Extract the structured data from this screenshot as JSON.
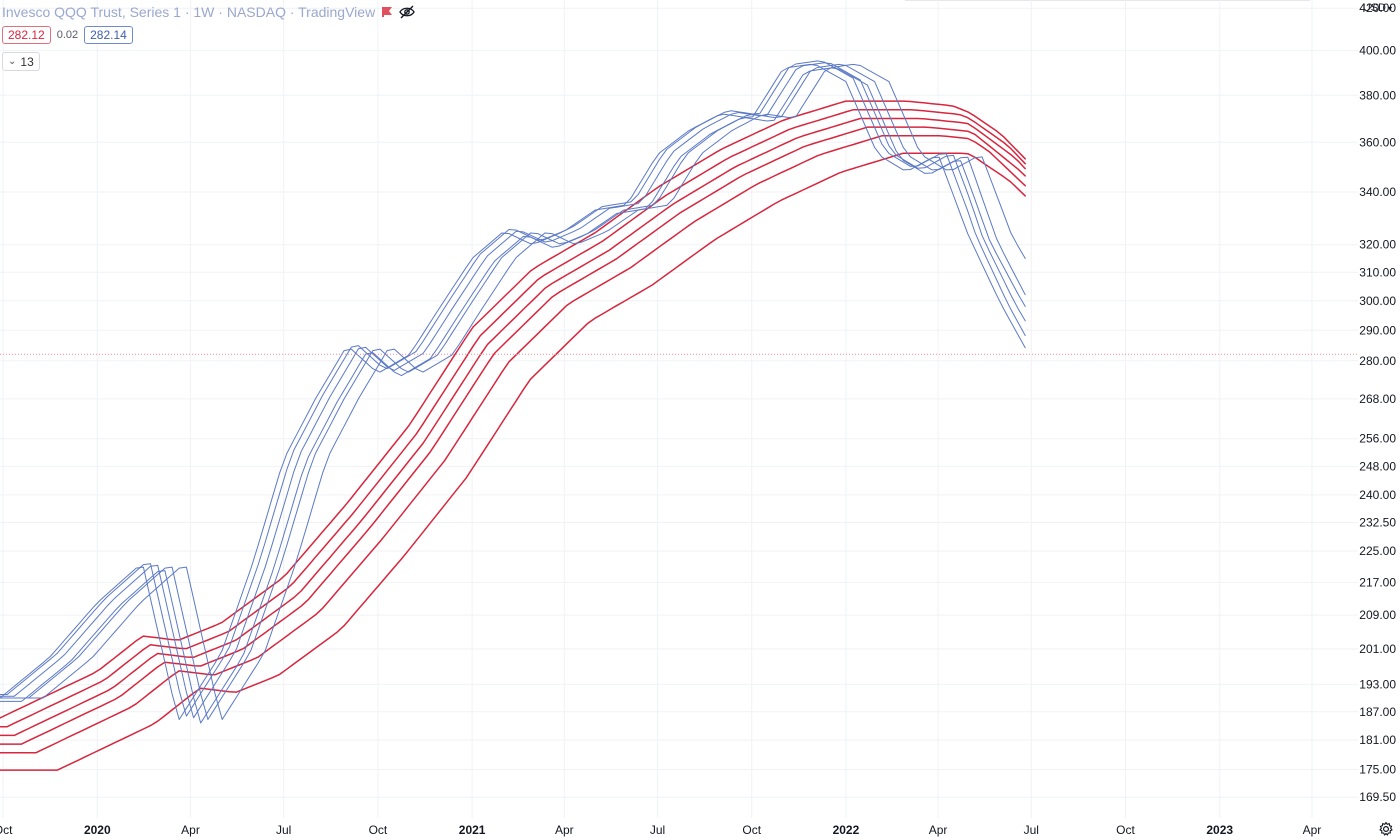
{
  "header": {
    "title": "Invesco QQQ Trust, Series 1 · 1W · NASDAQ · TradingView",
    "value_red": "282.12",
    "value_mid": "0.02",
    "value_blue": "282.14",
    "collapse_count": "13",
    "currency": "USD"
  },
  "icons": [
    "flag-icon",
    "eye-crossed-icon",
    "chevron-down-icon",
    "gear-icon"
  ],
  "colors": {
    "fast_series": "#5b79c6",
    "slow_series": "#d7263d",
    "price_line": "#f08a96",
    "grid": "#f0f2f5",
    "axis_text": "#131722"
  },
  "chart_data": {
    "type": "line",
    "title": "Invesco QQQ Trust, Series 1 · 1W · NASDAQ · TradingView",
    "xlabel": "",
    "ylabel": "",
    "y_scale": "log",
    "ylim": [
      165.5,
      424
    ],
    "xlim": [
      "2019-09-28",
      "2023-05-16"
    ],
    "current_price": 282.13,
    "x_tick_labels": [
      "Oct",
      "2020",
      "Apr",
      "Jul",
      "Oct",
      "2021",
      "Apr",
      "Jul",
      "Oct",
      "2022",
      "Apr",
      "Jul",
      "Oct",
      "2023",
      "Apr"
    ],
    "x_tick_dates": [
      "2019-10-01",
      "2020-01-01",
      "2020-04-01",
      "2020-07-01",
      "2020-10-01",
      "2021-01-01",
      "2021-04-01",
      "2021-07-01",
      "2021-10-01",
      "2022-01-01",
      "2022-04-01",
      "2022-07-01",
      "2022-10-01",
      "2023-01-01",
      "2023-04-01"
    ],
    "x_tick_bold": [
      false,
      true,
      false,
      false,
      false,
      true,
      false,
      false,
      false,
      true,
      false,
      false,
      false,
      true,
      false
    ],
    "y_ticks": [
      169.5,
      175,
      181,
      187,
      193,
      201,
      209,
      217,
      225,
      232.5,
      240,
      248,
      256,
      268,
      280,
      290,
      300,
      310,
      320,
      340,
      360,
      380,
      400,
      420
    ],
    "y_tick_labels": [
      "169.50",
      "175.00",
      "181.00",
      "187.00",
      "193.00",
      "201.00",
      "209.00",
      "217.00",
      "225.00",
      "232.50",
      "240.00",
      "248.00",
      "256.00",
      "268.00",
      "280.00",
      "290.00",
      "300.00",
      "310.00",
      "320.00",
      "340.00",
      "360.00",
      "380.00",
      "400.00",
      "420.00"
    ],
    "anchors": {
      "fast": [
        [
          "2019-09-28",
          190
        ],
        [
          "2019-11-15",
          199
        ],
        [
          "2020-01-01",
          212
        ],
        [
          "2020-02-14",
          222
        ],
        [
          "2020-03-20",
          185
        ],
        [
          "2020-05-01",
          200
        ],
        [
          "2020-06-01",
          222
        ],
        [
          "2020-07-01",
          250
        ],
        [
          "2020-08-01",
          268
        ],
        [
          "2020-09-01",
          285
        ],
        [
          "2020-10-01",
          276
        ],
        [
          "2020-11-01",
          282
        ],
        [
          "2020-12-01",
          298
        ],
        [
          "2021-01-01",
          315
        ],
        [
          "2021-02-01",
          325
        ],
        [
          "2021-03-01",
          320
        ],
        [
          "2021-04-01",
          325
        ],
        [
          "2021-05-01",
          333
        ],
        [
          "2021-06-01",
          335
        ],
        [
          "2021-07-01",
          355
        ],
        [
          "2021-08-01",
          365
        ],
        [
          "2021-09-01",
          372
        ],
        [
          "2021-10-01",
          370
        ],
        [
          "2021-11-01",
          392
        ],
        [
          "2021-12-01",
          394
        ],
        [
          "2022-01-01",
          386
        ],
        [
          "2022-02-01",
          355
        ],
        [
          "2022-03-01",
          348
        ],
        [
          "2022-04-01",
          355
        ],
        [
          "2022-05-01",
          323
        ],
        [
          "2022-06-01",
          303
        ],
        [
          "2022-06-27",
          290
        ]
      ],
      "slow": [
        [
          "2019-09-28",
          182
        ],
        [
          "2020-01-01",
          192
        ],
        [
          "2020-02-14",
          200
        ],
        [
          "2020-03-20",
          199
        ],
        [
          "2020-05-01",
          203
        ],
        [
          "2020-07-01",
          214
        ],
        [
          "2020-09-01",
          233
        ],
        [
          "2020-11-01",
          255
        ],
        [
          "2021-01-01",
          285
        ],
        [
          "2021-03-01",
          305
        ],
        [
          "2021-05-01",
          318
        ],
        [
          "2021-07-01",
          335
        ],
        [
          "2021-09-01",
          350
        ],
        [
          "2021-11-01",
          362
        ],
        [
          "2022-01-01",
          370
        ],
        [
          "2022-03-01",
          370
        ],
        [
          "2022-04-15",
          368
        ],
        [
          "2022-06-01",
          360
        ],
        [
          "2022-06-27",
          352
        ]
      ]
    },
    "series": [
      {
        "group": "fast",
        "lag_weeks": 0,
        "delta": 0.0,
        "end": 284.0
      },
      {
        "group": "fast",
        "lag_weeks": 1,
        "delta": 0.004,
        "end": 288.0
      },
      {
        "group": "fast",
        "lag_weeks": 2,
        "delta": 0.002,
        "end": 293.0
      },
      {
        "group": "fast",
        "lag_weeks": 3,
        "delta": -0.004,
        "end": 298.0
      },
      {
        "group": "fast",
        "lag_weeks": 4,
        "delta": 0.0,
        "end": 302.0
      },
      {
        "group": "fast",
        "lag_weeks": 6,
        "delta": 0.0,
        "end": 315.0
      },
      {
        "group": "slow",
        "lag_weeks": 0,
        "delta": 0.02,
        "end": 353.0
      },
      {
        "group": "slow",
        "lag_weeks": 1,
        "delta": 0.01,
        "end": 351.0
      },
      {
        "group": "slow",
        "lag_weeks": 2,
        "delta": 0.0,
        "end": 349.0
      },
      {
        "group": "slow",
        "lag_weeks": 3,
        "delta": -0.01,
        "end": 346.0
      },
      {
        "group": "slow",
        "lag_weeks": 5,
        "delta": -0.02,
        "end": 342.0
      },
      {
        "group": "slow",
        "lag_weeks": 8,
        "delta": -0.04,
        "end": 338.0
      }
    ]
  }
}
